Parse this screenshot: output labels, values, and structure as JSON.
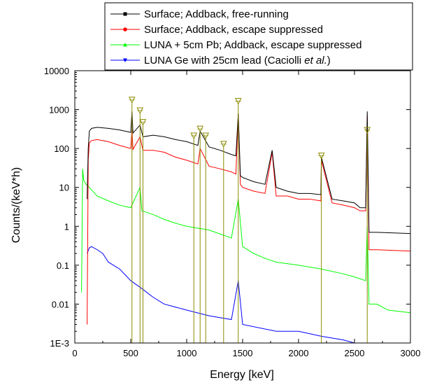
{
  "chart_data": {
    "type": "line",
    "title": "",
    "xlabel": "Energy [keV]",
    "ylabel": "Counts/(keV*h)",
    "xlim": [
      0,
      3000
    ],
    "ylim": [
      0.001,
      10000
    ],
    "yscale": "log",
    "grid": false,
    "legend": {
      "placement": "top-right",
      "entries": [
        {
          "text": "Surface; Addback, free-running",
          "italic_part": ""
        },
        {
          "text": "Surface; Addback, escape suppressed",
          "italic_part": ""
        },
        {
          "text": "LUNA + 5cm Pb; Addback, escape suppressed",
          "italic_part": ""
        },
        {
          "text": "LUNA Ge with 25cm lead (Caciolli ",
          "italic_part": "et al.",
          "suffix": ")"
        }
      ]
    },
    "x_ticks": [
      0,
      500,
      1000,
      1500,
      2000,
      2500,
      3000
    ],
    "x_tick_labels": [
      "0",
      "500",
      "1000",
      "1500",
      "2000",
      "2500",
      "3000"
    ],
    "y_ticks": [
      0.001,
      0.01,
      0.1,
      1,
      10,
      100,
      1000,
      10000
    ],
    "y_tick_labels": [
      "1E-3",
      "0.01",
      "0.1",
      "1",
      "10",
      "100",
      "1000",
      "10000"
    ],
    "series": [
      {
        "name": "Surface; Addback, free-running",
        "color": "#000000",
        "x": [
          110,
          120,
          130,
          150,
          200,
          300,
          400,
          500,
          511,
          520,
          583,
          609,
          700,
          800,
          900,
          1000,
          1100,
          1120,
          1200,
          1300,
          1400,
          1440,
          1461,
          1480,
          1500,
          1600,
          1700,
          1764,
          1800,
          1900,
          2000,
          2100,
          2200,
          2204,
          2300,
          2400,
          2500,
          2550,
          2600,
          2614,
          2630,
          2700,
          3000
        ],
        "y": [
          5,
          100,
          280,
          330,
          350,
          330,
          300,
          260,
          900,
          250,
          400,
          200,
          220,
          200,
          170,
          150,
          120,
          280,
          110,
          90,
          70,
          65,
          800,
          20,
          18,
          14,
          12,
          90,
          10,
          8,
          7,
          7,
          6.5,
          60,
          5,
          4.5,
          4,
          3,
          3,
          900,
          0.7,
          0.7,
          0.65
        ]
      },
      {
        "name": "Surface; Addback, escape suppressed",
        "color": "#ff0000",
        "x": [
          110,
          120,
          130,
          150,
          200,
          300,
          400,
          500,
          511,
          520,
          583,
          609,
          700,
          800,
          900,
          1000,
          1100,
          1120,
          1200,
          1300,
          1400,
          1440,
          1461,
          1480,
          1500,
          1600,
          1700,
          1764,
          1800,
          1900,
          2000,
          2100,
          2200,
          2204,
          2300,
          2400,
          2500,
          2550,
          2600,
          2614,
          2630,
          2700,
          3000
        ],
        "y": [
          0.003,
          50,
          140,
          160,
          170,
          150,
          120,
          100,
          300,
          95,
          200,
          90,
          90,
          80,
          60,
          50,
          40,
          100,
          35,
          30,
          25,
          22,
          800,
          12,
          10,
          8,
          7,
          80,
          6,
          6,
          5,
          5,
          4.5,
          50,
          4,
          3.5,
          3,
          2.5,
          2.5,
          700,
          0.25,
          0.25,
          0.23
        ]
      },
      {
        "name": "LUNA + 5cm Pb; Addback, escape suppressed",
        "color": "#00ff00",
        "x": [
          60,
          70,
          80,
          100,
          130,
          200,
          300,
          400,
          500,
          583,
          600,
          700,
          800,
          900,
          1000,
          1200,
          1400,
          1461,
          1500,
          1600,
          1700,
          1800,
          2000,
          2200,
          2400,
          2500,
          2600,
          2614,
          2630,
          2700,
          2800,
          3000
        ],
        "y": [
          0.02,
          30,
          15,
          12,
          10,
          6,
          4.5,
          3.5,
          3,
          10,
          2.5,
          2,
          1.5,
          1.2,
          1,
          0.8,
          0.5,
          5,
          0.3,
          0.2,
          0.15,
          0.12,
          0.1,
          0.08,
          0.06,
          0.05,
          0.04,
          1,
          0.01,
          0.01,
          0.007,
          0.006
        ]
      },
      {
        "name": "LUNA Ge with 25cm lead (Caciolli et al.)",
        "color": "#0000ff",
        "x": [
          110,
          130,
          150,
          200,
          250,
          300,
          400,
          500,
          600,
          700,
          800,
          1000,
          1200,
          1400,
          1461,
          1500,
          1800,
          2000,
          2200,
          2400,
          2500
        ],
        "y": [
          0.2,
          0.28,
          0.3,
          0.25,
          0.2,
          0.12,
          0.08,
          0.04,
          0.025,
          0.015,
          0.01,
          0.007,
          0.005,
          0.004,
          0.04,
          0.003,
          0.002,
          0.002,
          0.0015,
          0.0012,
          0.001
        ]
      }
    ],
    "markers": {
      "color": "#8b8b00",
      "x": [
        511,
        583,
        609,
        1064,
        1120,
        1170,
        1330,
        1461,
        2204,
        2614
      ],
      "top_y": [
        1500,
        800,
        400,
        180,
        270,
        180,
        110,
        1400,
        55,
        250
      ]
    }
  }
}
